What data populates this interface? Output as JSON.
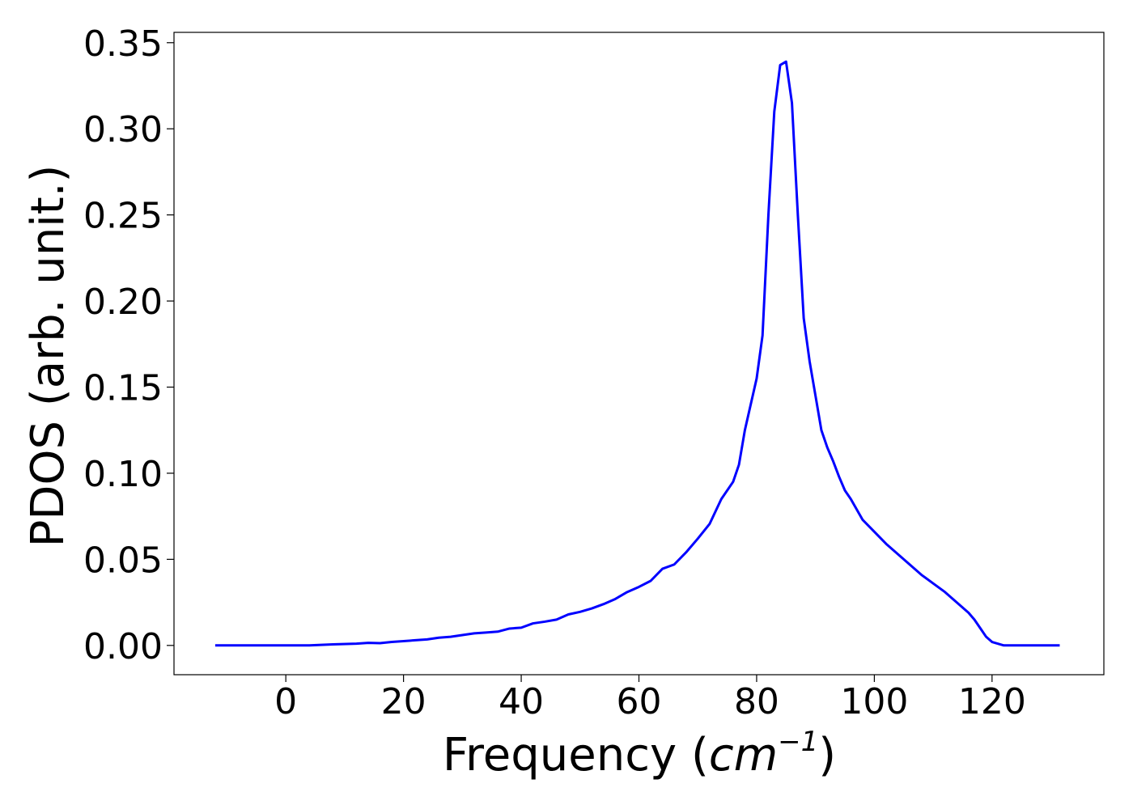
{
  "chart_data": {
    "type": "line",
    "title": "",
    "xlabel_main": "Frequency (",
    "xlabel_unit": "cm",
    "xlabel_exponent": "−1",
    "xlabel_close": ")",
    "ylabel": "PDOS (arb. unit.)",
    "xlim": [
      -19,
      139
    ],
    "ylim": [
      -0.017,
      0.356
    ],
    "xticks": [
      0,
      20,
      40,
      60,
      80,
      100,
      120
    ],
    "yticks": [
      0.0,
      0.05,
      0.1,
      0.15,
      0.2,
      0.25,
      0.3,
      0.35
    ],
    "ytick_labels": [
      "0.00",
      "0.05",
      "0.10",
      "0.15",
      "0.20",
      "0.25",
      "0.30",
      "0.35"
    ],
    "grid": false,
    "line_color": "#0000ff",
    "series": [
      {
        "x": [
          -12,
          -5,
          0,
          4,
          8,
          12,
          14,
          16,
          18,
          20,
          22,
          24,
          26,
          28,
          30,
          32,
          34,
          36,
          38,
          40,
          42,
          44,
          46,
          48,
          50,
          52,
          54,
          56,
          58,
          60,
          62,
          64,
          66,
          68,
          70,
          72,
          74,
          76,
          77,
          78,
          79,
          80,
          81,
          82,
          83,
          84,
          85,
          86,
          87,
          88,
          89,
          90,
          91,
          92,
          93,
          94,
          95,
          96,
          98,
          100,
          102,
          104,
          106,
          108,
          110,
          112,
          114,
          116,
          117,
          118,
          119,
          120,
          121,
          122,
          124,
          128,
          131.5
        ],
        "y": [
          0.0,
          0.0,
          0.0,
          0.0,
          0.0006,
          0.001,
          0.0015,
          0.0013,
          0.002,
          0.0025,
          0.003,
          0.0035,
          0.0045,
          0.005,
          0.006,
          0.007,
          0.0075,
          0.008,
          0.0098,
          0.0103,
          0.0128,
          0.0138,
          0.015,
          0.018,
          0.0195,
          0.0215,
          0.024,
          0.027,
          0.031,
          0.034,
          0.0375,
          0.0445,
          0.047,
          0.054,
          0.062,
          0.0705,
          0.085,
          0.095,
          0.105,
          0.125,
          0.14,
          0.155,
          0.18,
          0.25,
          0.31,
          0.337,
          0.339,
          0.315,
          0.25,
          0.19,
          0.165,
          0.145,
          0.125,
          0.115,
          0.107,
          0.098,
          0.09,
          0.085,
          0.073,
          0.066,
          0.059,
          0.053,
          0.047,
          0.041,
          0.036,
          0.031,
          0.025,
          0.019,
          0.015,
          0.01,
          0.005,
          0.002,
          0.001,
          0.0,
          0.0,
          0.0,
          0.0
        ]
      }
    ]
  }
}
